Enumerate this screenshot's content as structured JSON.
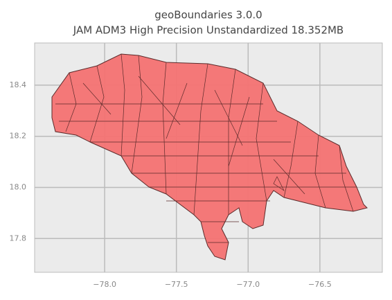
{
  "chart_data": {
    "type": "map",
    "title": "geoBoundaries 3.0.0",
    "subtitle": "JAM ADM3 High Precision Unstandardized 18.352MB",
    "xlim": [
      -78.488,
      -76.065
    ],
    "ylim": [
      17.668,
      18.565
    ],
    "xticks": [
      {
        "value": -78.0,
        "label": "−78.0"
      },
      {
        "value": -77.5,
        "label": "−77.5"
      },
      {
        "value": -77.0,
        "label": "−77.0"
      },
      {
        "value": -76.5,
        "label": "−76.5"
      }
    ],
    "yticks": [
      {
        "value": 17.8,
        "label": "17.8"
      },
      {
        "value": 18.0,
        "label": "18.0"
      },
      {
        "value": 18.2,
        "label": "18.2"
      },
      {
        "value": 18.4,
        "label": "18.4"
      }
    ],
    "grid": true,
    "color": "#f47272"
  }
}
